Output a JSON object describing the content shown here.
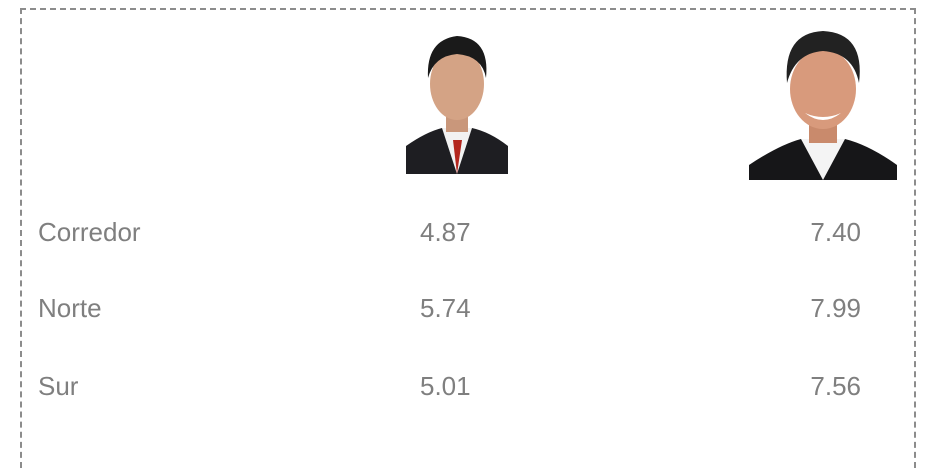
{
  "table": {
    "rows": [
      [
        "Corredor",
        "4.87",
        "7.40"
      ],
      [
        "Norte",
        "5.74",
        "7.99"
      ],
      [
        "Sur",
        "5.01",
        "7.56"
      ]
    ]
  }
}
